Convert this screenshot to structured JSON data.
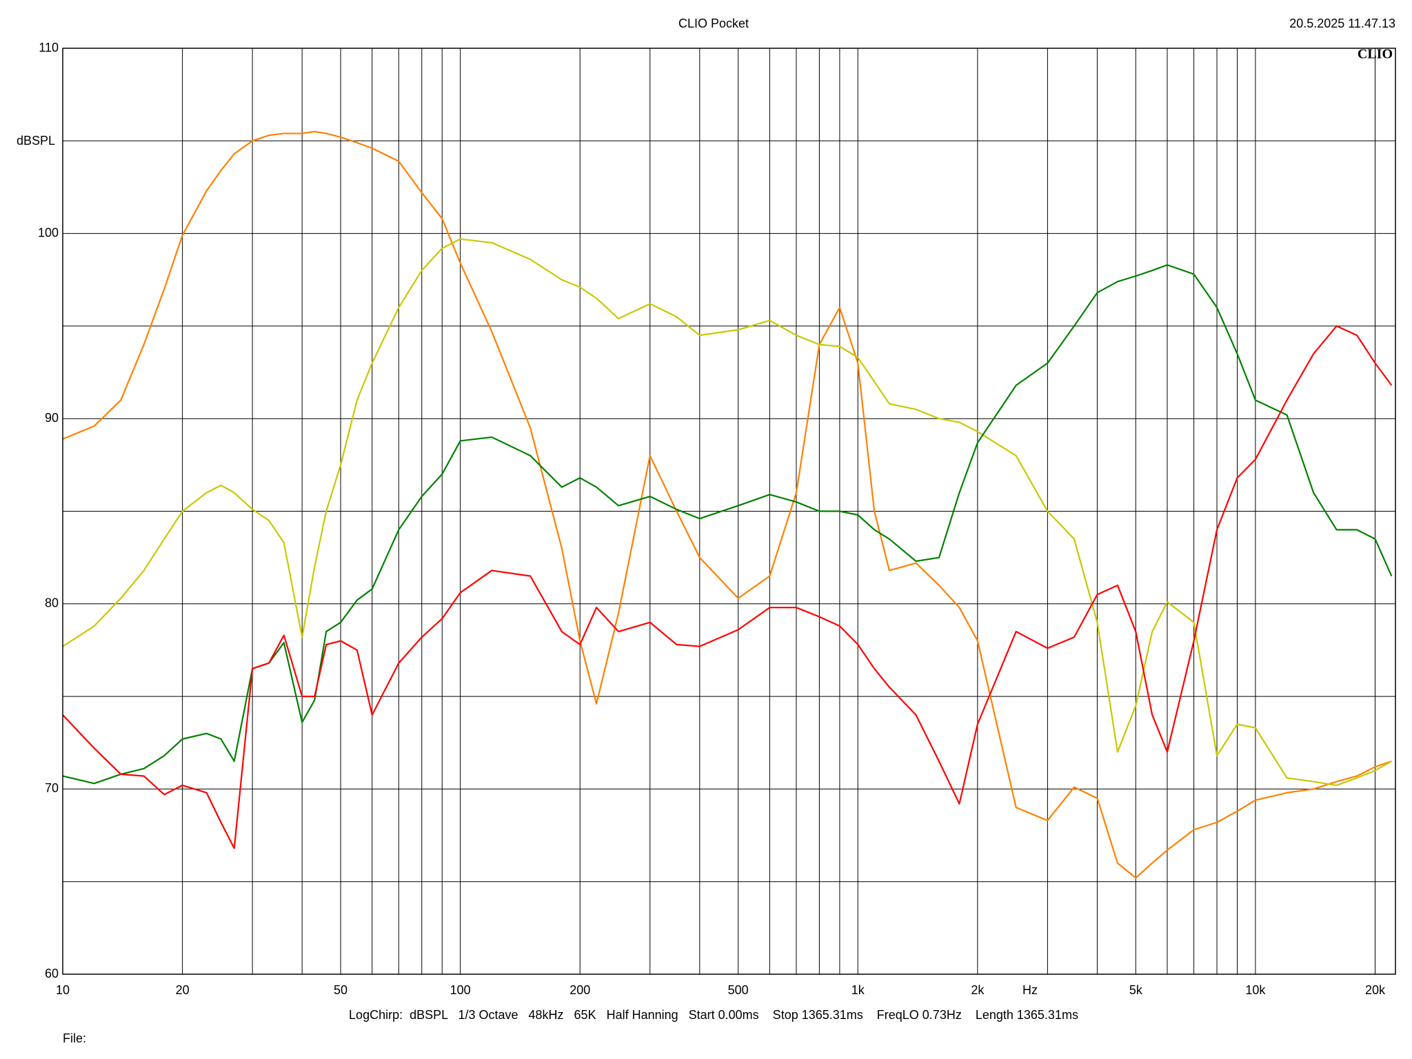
{
  "chart_data": {
    "type": "line",
    "title": "CLIO Pocket",
    "timestamp": "20.5.2025 11.47.13",
    "logo": "CLIO",
    "y_label": "dBSPL",
    "x_label": "Hz",
    "footer": "LogChirp:  dBSPL   1/3 Octave   48kHz   65K   Half Hanning   Start 0.00ms    Stop 1365.31ms    FreqLO 0.73Hz    Length 1365.31ms",
    "file_label": "File:",
    "x_log": true,
    "grid": true,
    "xlim": [
      10,
      22500
    ],
    "ylim": [
      60,
      110
    ],
    "yticks": [
      60,
      70,
      80,
      90,
      100,
      110
    ],
    "yminor_ticks": [
      65,
      75,
      85,
      95,
      105
    ],
    "xticks": [
      10,
      20,
      50,
      100,
      200,
      500,
      {
        "value": 1000,
        "label": "1k"
      },
      {
        "value": 2000,
        "label": "2k"
      },
      {
        "value": 5000,
        "label": "5k"
      },
      {
        "value": 10000,
        "label": "10k"
      },
      {
        "value": 20000,
        "label": "20k"
      }
    ],
    "xminor_ticks": [
      30,
      40,
      60,
      70,
      80,
      90,
      300,
      400,
      600,
      700,
      800,
      900,
      3000,
      4000,
      6000,
      7000,
      8000,
      9000
    ],
    "x": [
      10,
      12,
      14,
      16,
      18,
      20,
      23,
      25,
      27,
      30,
      33,
      36,
      40,
      43,
      46,
      50,
      55,
      60,
      70,
      80,
      90,
      100,
      120,
      150,
      180,
      200,
      220,
      250,
      300,
      350,
      400,
      500,
      600,
      700,
      800,
      900,
      1000,
      1100,
      1200,
      1400,
      1600,
      1800,
      2000,
      2500,
      3000,
      3500,
      4000,
      4500,
      5000,
      5500,
      6000,
      7000,
      8000,
      9000,
      10000,
      12000,
      14000,
      16000,
      18000,
      20000,
      22000
    ],
    "series": [
      {
        "color": "#ff8000",
        "values": [
          88.9,
          89.6,
          91.0,
          94.0,
          97.0,
          99.9,
          102.3,
          103.4,
          104.3,
          105.0,
          105.3,
          105.4,
          105.4,
          105.5,
          105.4,
          105.2,
          104.9,
          104.6,
          103.9,
          102.2,
          100.8,
          98.4,
          94.7,
          89.5,
          83.0,
          78.0,
          74.6,
          79.5,
          88.0,
          85.0,
          82.5,
          80.3,
          81.5,
          86.0,
          94.0,
          96.0,
          93.0,
          85.0,
          81.8,
          82.2,
          81.0,
          79.8,
          78.0,
          69.0,
          68.3,
          70.1,
          69.5,
          66.0,
          65.2,
          66.0,
          66.7,
          67.8,
          68.2,
          68.8,
          69.4,
          69.8,
          70.0,
          70.4,
          70.7,
          71.2,
          71.5
        ]
      },
      {
        "color": "#c8c800",
        "values": [
          77.7,
          78.8,
          80.3,
          81.8,
          83.5,
          85.0,
          86.0,
          86.4,
          86.0,
          85.1,
          84.5,
          83.3,
          78.2,
          82.0,
          85.0,
          87.5,
          91.0,
          93.0,
          96.0,
          98.0,
          99.2,
          99.7,
          99.5,
          98.6,
          97.5,
          97.1,
          96.5,
          95.4,
          96.2,
          95.5,
          94.5,
          94.8,
          95.3,
          94.5,
          94.0,
          93.9,
          93.3,
          92.0,
          90.8,
          90.5,
          90.0,
          89.8,
          89.3,
          88.0,
          85.0,
          83.5,
          79.0,
          72.0,
          74.5,
          78.5,
          80.1,
          79.0,
          71.8,
          73.5,
          73.3,
          70.6,
          70.4,
          70.2,
          70.6,
          71.0,
          71.5
        ]
      },
      {
        "color": "#008000",
        "values": [
          70.7,
          70.3,
          70.8,
          71.1,
          71.8,
          72.7,
          73.0,
          72.7,
          71.5,
          76.5,
          76.8,
          77.9,
          73.6,
          74.8,
          78.5,
          79.0,
          80.2,
          80.8,
          84.0,
          85.8,
          87.0,
          88.8,
          89.0,
          88.0,
          86.3,
          86.8,
          86.3,
          85.3,
          85.8,
          85.1,
          84.6,
          85.3,
          85.9,
          85.5,
          85.0,
          85.0,
          84.8,
          84.0,
          83.5,
          82.3,
          82.5,
          86.0,
          88.7,
          91.8,
          93.0,
          95.0,
          96.8,
          97.4,
          97.7,
          98.0,
          98.3,
          97.8,
          96.0,
          93.5,
          91.0,
          90.2,
          86.0,
          84.0,
          84.0,
          83.5,
          81.5
        ]
      },
      {
        "color": "#ff0000",
        "values": [
          74.0,
          72.2,
          70.8,
          70.7,
          69.7,
          70.2,
          69.8,
          68.2,
          66.8,
          76.5,
          76.8,
          78.3,
          75.0,
          75.0,
          77.8,
          78.0,
          77.5,
          74.0,
          76.8,
          78.2,
          79.2,
          80.6,
          81.8,
          81.5,
          78.5,
          77.8,
          79.8,
          78.5,
          79.0,
          77.8,
          77.7,
          78.6,
          79.8,
          79.8,
          79.3,
          78.8,
          77.8,
          76.5,
          75.5,
          74.0,
          71.5,
          69.2,
          73.5,
          78.5,
          77.6,
          78.2,
          80.5,
          81.0,
          78.5,
          74.0,
          72.0,
          78.0,
          84.0,
          86.8,
          87.8,
          91.0,
          93.5,
          95.0,
          94.5,
          93.0,
          91.8
        ]
      }
    ]
  }
}
